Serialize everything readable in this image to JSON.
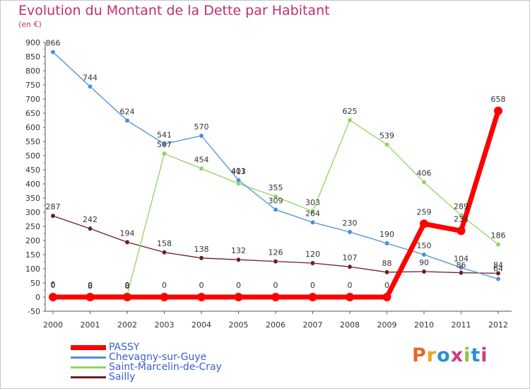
{
  "title": "Evolution du Montant de la Dette par Habitant",
  "subtitle": "(en €)",
  "logo": {
    "text": "Proxiti",
    "letter_colors": [
      "#e4682a",
      "#f0a322",
      "#2a8fd6",
      "#d23a83",
      "#8cc63f",
      "#2a8fd6",
      "#d23a83"
    ]
  },
  "chart_data": {
    "type": "line",
    "x": [
      "2000",
      "2001",
      "2002",
      "2003",
      "2004",
      "2005",
      "2006",
      "2007",
      "2008",
      "2009",
      "2010",
      "2011",
      "2012"
    ],
    "ylim": [
      -50,
      900
    ],
    "yticks": [
      "-50",
      "0",
      "50",
      "100",
      "150",
      "200",
      "250",
      "300",
      "350",
      "400",
      "450",
      "500",
      "550",
      "600",
      "650",
      "700",
      "750",
      "800",
      "850",
      "900"
    ],
    "grid": false,
    "legend_position": "bottom-left",
    "series": [
      {
        "name": "Sailly",
        "color": "#6b1f24",
        "values": [
          287,
          242,
          194,
          158,
          138,
          132,
          126,
          120,
          107,
          88,
          90,
          86,
          84
        ],
        "labels": [
          "287",
          "242",
          "194",
          "158",
          "138",
          "132",
          "126",
          "120",
          "107",
          "88",
          "90",
          "86",
          "84"
        ]
      },
      {
        "name": "Saint-Marcelin-de-Cray",
        "color": "#93d45e",
        "values": [
          6,
          8,
          8,
          507,
          454,
          401,
          355,
          303,
          625,
          539,
          406,
          289,
          186
        ],
        "labels": [
          "6",
          "8",
          "8",
          "507",
          "454",
          "401",
          "355",
          "303",
          "625",
          "539",
          "406",
          "289",
          "186"
        ]
      },
      {
        "name": "Chevagny-sur-Guye",
        "color": "#4a90d9",
        "values": [
          866,
          744,
          624,
          541,
          570,
          413,
          309,
          264,
          230,
          190,
          150,
          104,
          64
        ],
        "labels": [
          "866",
          "744",
          "624",
          "541",
          "570",
          "413",
          "309",
          "264",
          "230",
          "190",
          "150",
          "104",
          "64"
        ]
      },
      {
        "name": "PASSY",
        "color": "#ff0000",
        "values": [
          0,
          0,
          0,
          0,
          0,
          0,
          0,
          0,
          0,
          0,
          259,
          234,
          658
        ],
        "labels": [
          "0",
          "0",
          "0",
          "0",
          "0",
          "0",
          "0",
          "0",
          "0",
          "0",
          "259",
          "234",
          "658"
        ]
      }
    ],
    "legend": [
      "PASSY",
      "Chevagny-sur-Guye",
      "Saint-Marcelin-de-Cray",
      "Sailly"
    ]
  }
}
